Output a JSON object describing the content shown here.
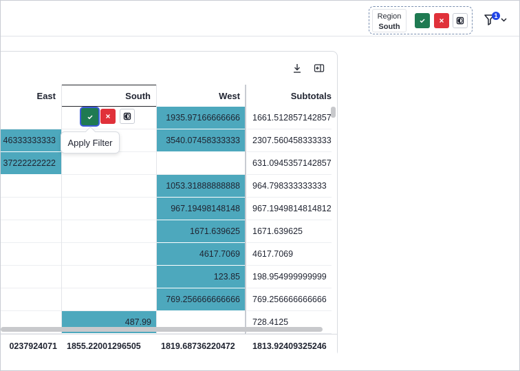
{
  "filter_chip": {
    "label": "Region",
    "value": "South"
  },
  "filter_badge": "1",
  "columns": {
    "east": "East",
    "south": "South",
    "west": "West",
    "subtotals": "Subtotals"
  },
  "rows": [
    {
      "east": "",
      "south": "",
      "west": "1935.97166666666",
      "subtotal": "1661.512857142857"
    },
    {
      "east": "46333333333",
      "south": "",
      "west": "3540.07458333333",
      "subtotal": "2307.560458333333"
    },
    {
      "east": "37222222222",
      "south": "",
      "west": "",
      "subtotal": "631.0945357142857"
    },
    {
      "east": "",
      "south": "",
      "west": "1053.31888888888",
      "subtotal": "964.798333333333"
    },
    {
      "east": "",
      "south": "",
      "west": "967.19498148148",
      "subtotal": "967.1949814814812"
    },
    {
      "east": "",
      "south": "",
      "west": "1671.639625",
      "subtotal": "1671.639625"
    },
    {
      "east": "",
      "south": "",
      "west": "4617.7069",
      "subtotal": "4617.7069"
    },
    {
      "east": "",
      "south": "",
      "west": "123.85",
      "subtotal": "198.954999999999"
    },
    {
      "east": "",
      "south": "",
      "west": "769.256666666666",
      "subtotal": "769.256666666666"
    },
    {
      "east": "",
      "south": "487.99",
      "west": "",
      "subtotal": "728.4125"
    }
  ],
  "totals": {
    "east": "0237924071",
    "south": "1855.22001296505",
    "west": "1819.68736220472",
    "subtotal": "1813.92409325246"
  },
  "tooltip": "Apply Filter",
  "colors": {
    "highlight": "#4da8bd",
    "apply": "#1f7a52",
    "cancel": "#e0313a",
    "badge": "#2246e6"
  },
  "icons": {
    "apply": "check-icon",
    "cancel": "close-icon",
    "invert": "invert-icon",
    "filter": "funnel-icon",
    "download": "download-icon",
    "side_panel": "side-panel-icon"
  }
}
